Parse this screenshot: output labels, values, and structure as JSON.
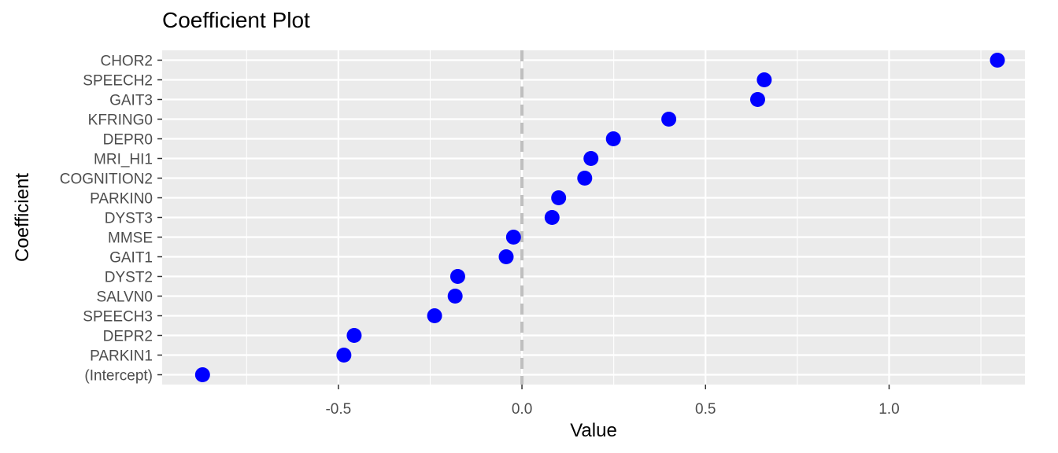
{
  "chart_data": {
    "type": "scatter",
    "title": "Coefficient Plot",
    "xlabel": "Value",
    "ylabel": "Coefficient",
    "xlim": [
      -0.98,
      1.37
    ],
    "x_ticks": [
      -0.5,
      0.0,
      0.5,
      1.0
    ],
    "x_tick_labels": [
      "-0.5",
      "0.0",
      "0.5",
      "1.0"
    ],
    "reference_line": {
      "x": 0,
      "style": "dashed",
      "color": "#bfbfbf"
    },
    "grid": true,
    "panel_background": "#ebebeb",
    "point_color": "#0000ff",
    "categories": [
      "(Intercept)",
      "PARKIN1",
      "DEPR2",
      "SPEECH3",
      "SALVN0",
      "DYST2",
      "GAIT1",
      "MMSE",
      "DYST3",
      "PARKIN0",
      "COGNITION2",
      "MRI_HI1",
      "DEPR0",
      "KFRING0",
      "GAIT3",
      "SPEECH2",
      "CHOR2"
    ],
    "values": [
      -0.87,
      -0.485,
      -0.457,
      -0.238,
      -0.182,
      -0.175,
      -0.043,
      -0.023,
      0.082,
      0.1,
      0.171,
      0.188,
      0.249,
      0.4,
      0.642,
      0.66,
      1.295
    ]
  }
}
